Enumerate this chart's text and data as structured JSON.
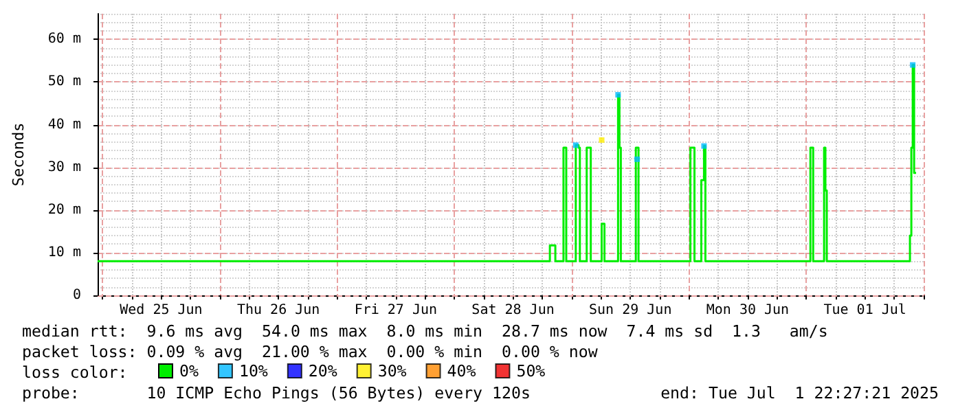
{
  "chart_data": {
    "type": "step",
    "ylabel": "Seconds",
    "legend_title": "loss color:",
    "legend": "bottom",
    "grid": true,
    "xlim": [
      "2025-06-24T23:00",
      "2025-07-02T00:00"
    ],
    "xticks": [
      {
        "value": "2025-06-25T12:00",
        "label": "Wed 25 Jun"
      },
      {
        "value": "2025-06-26T12:00",
        "label": "Thu 26 Jun"
      },
      {
        "value": "2025-06-27T12:00",
        "label": "Fri 27 Jun"
      },
      {
        "value": "2025-06-28T12:00",
        "label": "Sat 28 Jun"
      },
      {
        "value": "2025-06-29T12:00",
        "label": "Sun 29 Jun"
      },
      {
        "value": "2025-06-30T12:00",
        "label": "Mon 30 Jun"
      },
      {
        "value": "2025-07-01T12:00",
        "label": "Tue 01 Jul"
      }
    ],
    "ylim": [
      0,
      66
    ],
    "yticks": [
      0,
      {
        "value": 10,
        "label": "10 m"
      },
      {
        "value": 20,
        "label": "20 m"
      },
      {
        "value": 30,
        "label": "30 m"
      },
      {
        "value": 40,
        "label": "40 m"
      },
      {
        "value": 50,
        "label": "50 m"
      },
      {
        "value": 60,
        "label": "60 m"
      }
    ],
    "series": [
      {
        "name": "0%",
        "color": "#00ee00",
        "marker": "none",
        "x": [
          "2025-06-24T23:00",
          "2025-06-28T19:15",
          "2025-06-28T19:32",
          "2025-06-28T20:22",
          "2025-06-28T20:39",
          "2025-06-28T22:02",
          "2025-06-28T22:19",
          "2025-06-28T22:36",
          "2025-06-28T22:53",
          "2025-06-29T00:33",
          "2025-06-29T00:50",
          "2025-06-29T01:24",
          "2025-06-29T01:40",
          "2025-06-29T02:47",
          "2025-06-29T03:04",
          "2025-06-29T03:38",
          "2025-06-29T03:54",
          "2025-06-29T05:52",
          "2025-06-29T06:08",
          "2025-06-29T06:25",
          "2025-06-29T06:42",
          "2025-06-29T09:12",
          "2025-06-29T09:29",
          "2025-06-29T09:46",
          "2025-06-29T10:03",
          "2025-06-29T12:50",
          "2025-06-29T13:07",
          "2025-06-29T13:23",
          "2025-06-29T13:40",
          "2025-06-30T00:00",
          "2025-06-30T00:17",
          "2025-06-30T00:50",
          "2025-06-30T01:07",
          "2025-06-30T02:14",
          "2025-06-30T02:31",
          "2025-06-30T03:04",
          "2025-06-30T03:21",
          "2025-07-01T00:33",
          "2025-07-01T00:50",
          "2025-07-01T01:07",
          "2025-07-01T01:24",
          "2025-07-01T03:21",
          "2025-07-01T03:38",
          "2025-07-01T03:54",
          "2025-07-01T04:11",
          "2025-07-01T20:56",
          "2025-07-01T21:12",
          "2025-07-01T21:29",
          "2025-07-01T21:46",
          "2025-07-01T22:03",
          "2025-07-01T22:27"
        ],
        "values": [
          8.0,
          8.0,
          11.7,
          11.7,
          8.0,
          8.0,
          34.6,
          34.6,
          8.0,
          8.0,
          35.2,
          34.6,
          8.0,
          8.0,
          34.6,
          34.6,
          8.0,
          8.0,
          16.8,
          16.8,
          8.0,
          8.0,
          47.0,
          34.6,
          8.0,
          8.0,
          34.6,
          34.6,
          8.0,
          8.0,
          34.6,
          34.6,
          8.0,
          8.0,
          27.0,
          35.0,
          8.0,
          8.0,
          34.6,
          34.6,
          8.0,
          8.0,
          34.6,
          24.6,
          8.0,
          8.0,
          14.0,
          34.6,
          54.0,
          28.7,
          28.7
        ]
      },
      {
        "name": "10%",
        "color": "#00b8ff",
        "type": "scatter",
        "marker": "square",
        "x": [
          "2025-06-29T00:50",
          "2025-06-29T09:29",
          "2025-06-29T13:23",
          "2025-06-30T03:04",
          "2025-07-01T21:46"
        ],
        "values": [
          35.2,
          47.0,
          31.9,
          35.0,
          54.0
        ]
      },
      {
        "name": "20%",
        "color": "#0000ff",
        "type": "scatter",
        "marker": "square"
      },
      {
        "name": "30%",
        "color": "#ffee00",
        "type": "scatter",
        "marker": "square",
        "x": [
          "2025-06-29T06:08"
        ],
        "values": [
          36.4
        ]
      },
      {
        "name": "40%",
        "color": "#ff8800",
        "type": "scatter",
        "marker": "square"
      },
      {
        "name": "50%",
        "color": "#ee0000",
        "type": "scatter",
        "marker": "square"
      }
    ],
    "annotations": [
      "median rtt:  9.6 ms avg  54.0 ms max  8.0 ms min  28.7 ms now  7.4 ms sd  1.3   am/s",
      "packet loss: 0.09 % avg  21.00 % max  0.00 % min  0.00 % now",
      "probe:       10 ICMP Echo Pings (56 Bytes) every 120s",
      "end: Tue Jul  1 22:27:21 2025"
    ]
  }
}
